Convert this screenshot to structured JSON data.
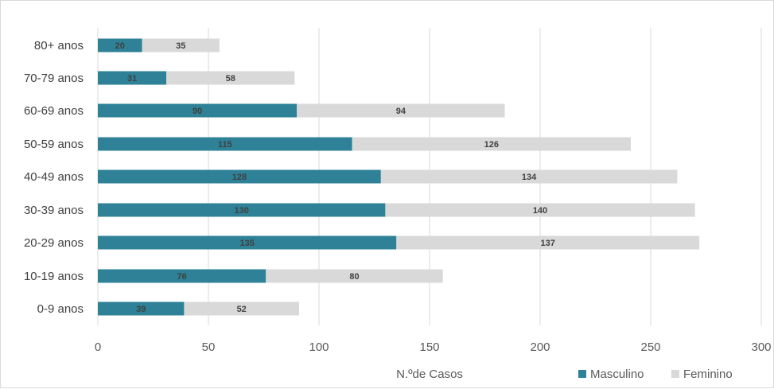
{
  "chart_data": {
    "type": "bar",
    "orientation": "horizontal",
    "stacked": true,
    "categories": [
      "0-9 anos",
      "10-19 anos",
      "20-29 anos",
      "30-39 anos",
      "40-49 anos",
      "50-59 anos",
      "60-69 anos",
      "70-79 anos",
      "80+ anos"
    ],
    "series": [
      {
        "name": "Masculino",
        "color": "#2e8197",
        "values": [
          39,
          76,
          135,
          130,
          128,
          115,
          90,
          31,
          20
        ]
      },
      {
        "name": "Feminino",
        "color": "#d9d9d9",
        "values": [
          52,
          80,
          137,
          140,
          134,
          126,
          94,
          58,
          35
        ]
      }
    ],
    "xlabel": "N.ºde Casos",
    "ylabel": "",
    "xlim": [
      0,
      300
    ],
    "xticks": [
      0,
      50,
      100,
      150,
      200,
      250,
      300
    ],
    "grid": "vertical",
    "legend_position": "bottom-right",
    "data_labels": true
  }
}
